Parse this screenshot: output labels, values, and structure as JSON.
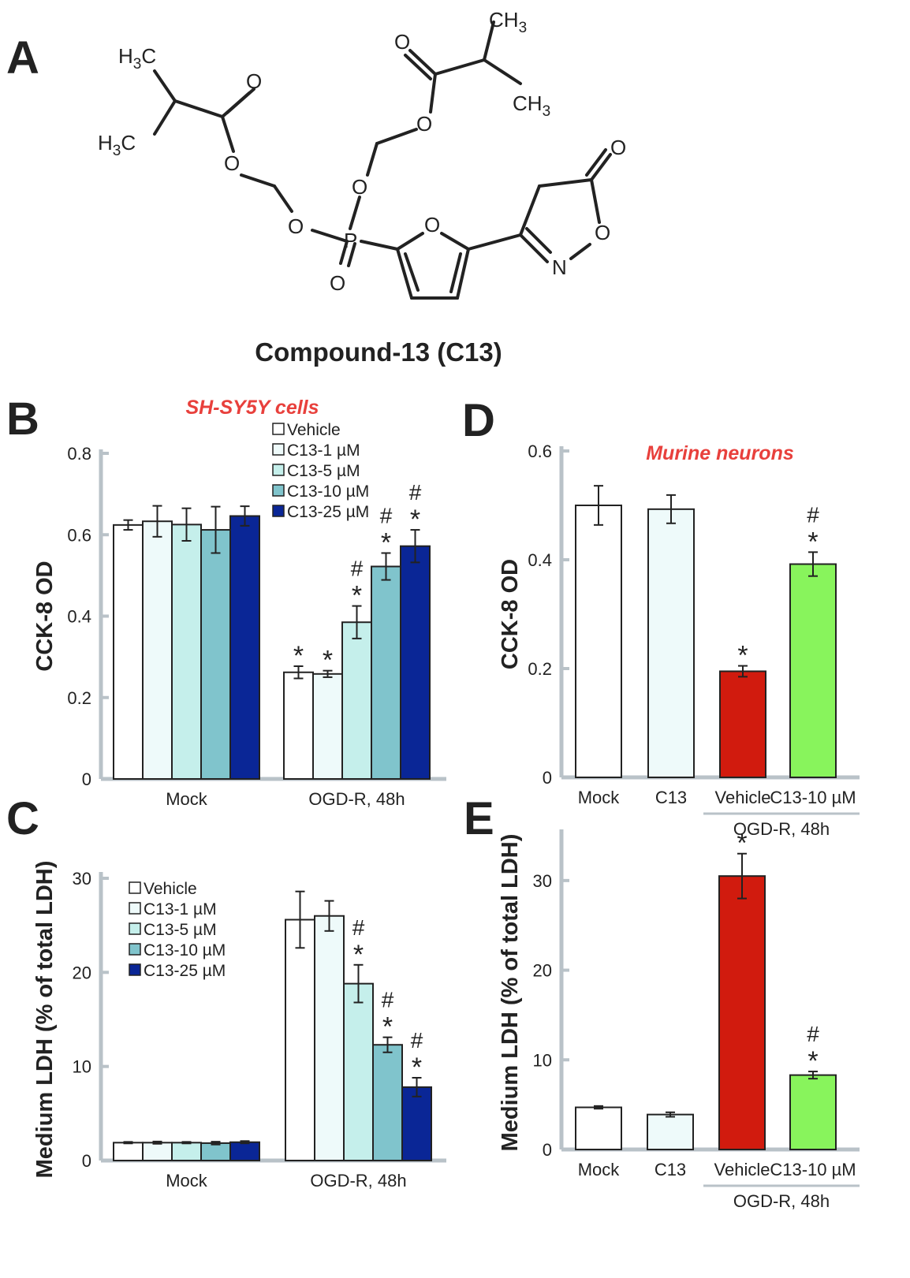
{
  "panels": {
    "A": "A",
    "B": "B",
    "C": "C",
    "D": "D",
    "E": "E"
  },
  "compound": {
    "name": "Compound-13 (C13)",
    "atoms": [
      "O",
      "O",
      "O",
      "O",
      "O",
      "O",
      "O",
      "O",
      "O",
      "P",
      "N"
    ],
    "groups": [
      "H3C",
      "H3C",
      "CH3",
      "CH3"
    ]
  },
  "colors": {
    "Vehicle": "#ffffff",
    "C13-1 µM": "#eefafa",
    "C13-5 µM": "#c5efeb",
    "C13-10 µM": "#80c4cc",
    "C13-25 µM": "#0a2696",
    "murine_mock": "#ffffff",
    "murine_c13": "#eefafa",
    "murine_vehicle": "#d11b0e",
    "murine_c13_10": "#88f45c",
    "axis": "#b9c2c8",
    "subtitle": "#e8403c"
  },
  "chart_data": [
    {
      "panel": "B",
      "type": "bar",
      "subtitle": "SH-SY5Y cells",
      "ylabel": "CCK-8 OD",
      "ylim": [
        0,
        0.8
      ],
      "yticks": [
        "0",
        "0.2",
        "0.4",
        "0.6",
        "0.8"
      ],
      "categories": [
        "Mock",
        "OGD-R, 48h"
      ],
      "legend_position": "top-right",
      "series": [
        {
          "name": "Vehicle",
          "values": [
            0.624,
            0.262
          ],
          "errors": [
            0.012,
            0.015
          ],
          "marks": [
            "",
            "*"
          ]
        },
        {
          "name": "C13-1 µM",
          "values": [
            0.633,
            0.258
          ],
          "errors": [
            0.038,
            0.008
          ],
          "marks": [
            "",
            "*"
          ]
        },
        {
          "name": "C13-5 µM",
          "values": [
            0.625,
            0.385
          ],
          "errors": [
            0.04,
            0.04
          ],
          "marks": [
            "",
            "*#"
          ]
        },
        {
          "name": "C13-10 µM",
          "values": [
            0.612,
            0.522
          ],
          "errors": [
            0.057,
            0.033
          ],
          "marks": [
            "",
            "*#"
          ]
        },
        {
          "name": "C13-25 µM",
          "values": [
            0.646,
            0.572
          ],
          "errors": [
            0.024,
            0.04
          ],
          "marks": [
            "",
            "*#"
          ]
        }
      ]
    },
    {
      "panel": "C",
      "type": "bar",
      "ylabel": "Medium LDH (% of total LDH)",
      "ylim": [
        0,
        30
      ],
      "yticks": [
        "0",
        "10",
        "20",
        "30"
      ],
      "categories": [
        "Mock",
        "OGD-R, 48h"
      ],
      "legend_position": "top-left",
      "series": [
        {
          "name": "Vehicle",
          "values": [
            1.9,
            25.6
          ],
          "errors": [
            0.08,
            3.0
          ],
          "marks": [
            "",
            ""
          ]
        },
        {
          "name": "C13-1 µM",
          "values": [
            1.9,
            26.0
          ],
          "errors": [
            0.12,
            1.6
          ],
          "marks": [
            "",
            ""
          ]
        },
        {
          "name": "C13-5 µM",
          "values": [
            1.9,
            18.8
          ],
          "errors": [
            0.08,
            2.0
          ],
          "marks": [
            "",
            "*#"
          ]
        },
        {
          "name": "C13-10 µM",
          "values": [
            1.85,
            12.3
          ],
          "errors": [
            0.15,
            0.8
          ],
          "marks": [
            "",
            "*#"
          ]
        },
        {
          "name": "C13-25 µM",
          "values": [
            1.95,
            7.8
          ],
          "errors": [
            0.12,
            1.0
          ],
          "marks": [
            "",
            "*#"
          ]
        }
      ]
    },
    {
      "panel": "D",
      "type": "bar",
      "subtitle": "Murine neurons",
      "ylabel": "CCK-8 OD",
      "ylim": [
        0,
        0.6
      ],
      "yticks": [
        "0",
        "0.2",
        "0.4",
        "0.6"
      ],
      "categories": [
        "Mock",
        "C13",
        "Vehicle",
        "C13-10 µM"
      ],
      "group_label": "OGD-R, 48h",
      "values": [
        0.5,
        0.493,
        0.195,
        0.392
      ],
      "errors": [
        0.036,
        0.026,
        0.01,
        0.022
      ],
      "marks": [
        "",
        "",
        "*",
        "*#"
      ]
    },
    {
      "panel": "E",
      "type": "bar",
      "ylabel": "Medium LDH (% of total LDH)",
      "ylim": [
        0,
        35
      ],
      "yticks": [
        "0",
        "10",
        "20",
        "30"
      ],
      "categories": [
        "Mock",
        "C13",
        "Vehicle",
        "C13-10 µM"
      ],
      "group_label": "OGD-R, 48h",
      "values": [
        4.7,
        3.9,
        30.5,
        8.3
      ],
      "errors": [
        0.15,
        0.25,
        2.5,
        0.4
      ],
      "marks": [
        "",
        "",
        "*",
        "*#"
      ]
    }
  ]
}
